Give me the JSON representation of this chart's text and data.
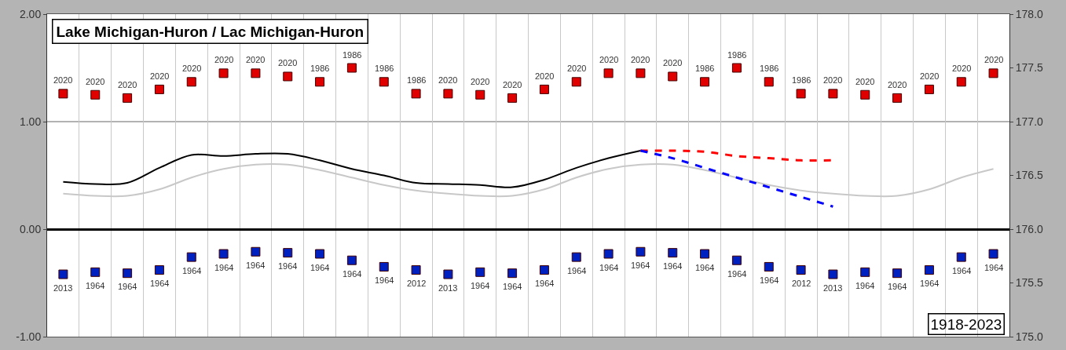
{
  "chart_data": {
    "type": "line",
    "title": "Lake Michigan-Huron / Lac Michigan-Huron",
    "annotations": [
      "2020",
      "2020",
      "2020",
      "2020",
      "2020",
      "2020",
      "2020",
      "2020",
      "1986",
      "1986",
      "1986",
      "1986",
      "2020",
      "2020",
      "2020",
      "2020",
      "2020",
      "2020",
      "2020",
      "2020",
      "1986",
      "1986",
      "1986",
      "1986",
      "2020",
      "2020",
      "2020",
      "2020",
      "2020",
      "2020",
      "2013",
      "1964",
      "1964",
      "1964",
      "1964",
      "1964",
      "1964",
      "1964",
      "1964",
      "1964",
      "1964",
      "2012",
      "2013",
      "1964",
      "1964",
      "1964",
      "1964",
      "1964",
      "1964",
      "1964",
      "1964",
      "1964",
      "1964",
      "2012",
      "2013",
      "1964",
      "1964",
      "1964",
      "1964",
      "1964",
      "1918-2023"
    ],
    "categories": [
      null,
      null,
      null,
      null,
      null,
      null,
      null,
      null,
      null,
      null,
      null,
      null,
      null,
      null,
      null,
      null,
      null,
      null,
      null,
      null,
      null,
      null,
      null,
      null,
      null,
      null,
      null,
      null,
      null,
      null
    ],
    "ylim": [
      -1,
      2
    ],
    "yticks": [
      {
        "value": -1,
        "label": "-1.00"
      },
      {
        "value": 0,
        "label": "0.00"
      },
      {
        "value": 1,
        "label": "1.00"
      },
      {
        "value": 2,
        "label": "2.00"
      }
    ],
    "y2lim": [
      175,
      178
    ],
    "y2ticks": [
      {
        "value": 175,
        "label": "175.0"
      },
      {
        "value": 175.5,
        "label": "175.5"
      },
      {
        "value": 176,
        "label": "176.0"
      },
      {
        "value": 176.5,
        "label": "176.5"
      },
      {
        "value": 177,
        "label": "177.0"
      },
      {
        "value": 177.5,
        "label": "177.5"
      },
      {
        "value": 178,
        "label": "178.0"
      }
    ],
    "grid": "x",
    "ref_lines": [
      {
        "axis": "y",
        "value": 1,
        "color": "#999999"
      }
    ],
    "series": [
      {
        "type": "scatter",
        "marker": "square",
        "color": "#e00000",
        "values": [
          1.26,
          1.25,
          1.22,
          1.3,
          1.37,
          1.45,
          1.45,
          1.42,
          1.37,
          1.5,
          1.37,
          1.26,
          1.26,
          1.25,
          1.22,
          1.3,
          1.37,
          1.45,
          1.45,
          1.42,
          1.37,
          1.5,
          1.37,
          1.26,
          1.26,
          1.25,
          1.22,
          1.3,
          1.37,
          1.45
        ]
      },
      {
        "type": "scatter",
        "marker": "square",
        "color": "#0020c0",
        "values": [
          -0.42,
          -0.4,
          -0.41,
          -0.38,
          -0.26,
          -0.23,
          -0.21,
          -0.22,
          -0.23,
          -0.29,
          -0.35,
          -0.38,
          -0.42,
          -0.4,
          -0.41,
          -0.38,
          -0.26,
          -0.23,
          -0.21,
          -0.22,
          -0.23,
          -0.29,
          -0.35,
          -0.38,
          -0.42,
          -0.4,
          -0.41,
          -0.38,
          -0.26,
          -0.23
        ]
      },
      {
        "color": "#c8c8c8",
        "values": [
          0.33,
          0.31,
          0.31,
          0.37,
          0.48,
          0.56,
          0.6,
          0.6,
          0.55,
          0.48,
          0.41,
          0.36,
          0.33,
          0.31,
          0.31,
          0.37,
          0.48,
          0.56,
          0.6,
          0.6,
          0.55,
          0.48,
          0.41,
          0.36,
          0.33,
          0.31,
          0.31,
          0.37,
          0.48,
          0.56
        ]
      },
      {
        "color": "#000000",
        "values": [
          0.44,
          0.42,
          0.43,
          0.57,
          0.69,
          0.68,
          0.7,
          0.7,
          0.64,
          0.56,
          0.5,
          0.43,
          0.42,
          0.41,
          0.39,
          0.46,
          0.57,
          0.66,
          0.73,
          null,
          null,
          null,
          null,
          null,
          null,
          null,
          null,
          null,
          null,
          null
        ]
      },
      {
        "color": "#ff0000",
        "line_style": "dashed",
        "values": [
          null,
          null,
          null,
          null,
          null,
          null,
          null,
          null,
          null,
          null,
          null,
          null,
          null,
          null,
          null,
          null,
          null,
          null,
          0.73,
          0.73,
          0.72,
          0.68,
          0.66,
          0.64,
          0.64,
          null,
          null,
          null,
          null,
          null
        ]
      },
      {
        "color": "#0000ff",
        "line_style": "dashed",
        "values": [
          null,
          null,
          null,
          null,
          null,
          null,
          null,
          null,
          null,
          null,
          null,
          null,
          null,
          null,
          null,
          null,
          null,
          null,
          0.73,
          0.66,
          0.57,
          0.48,
          0.39,
          0.3,
          0.21,
          null,
          null,
          null,
          null,
          null
        ]
      }
    ]
  }
}
